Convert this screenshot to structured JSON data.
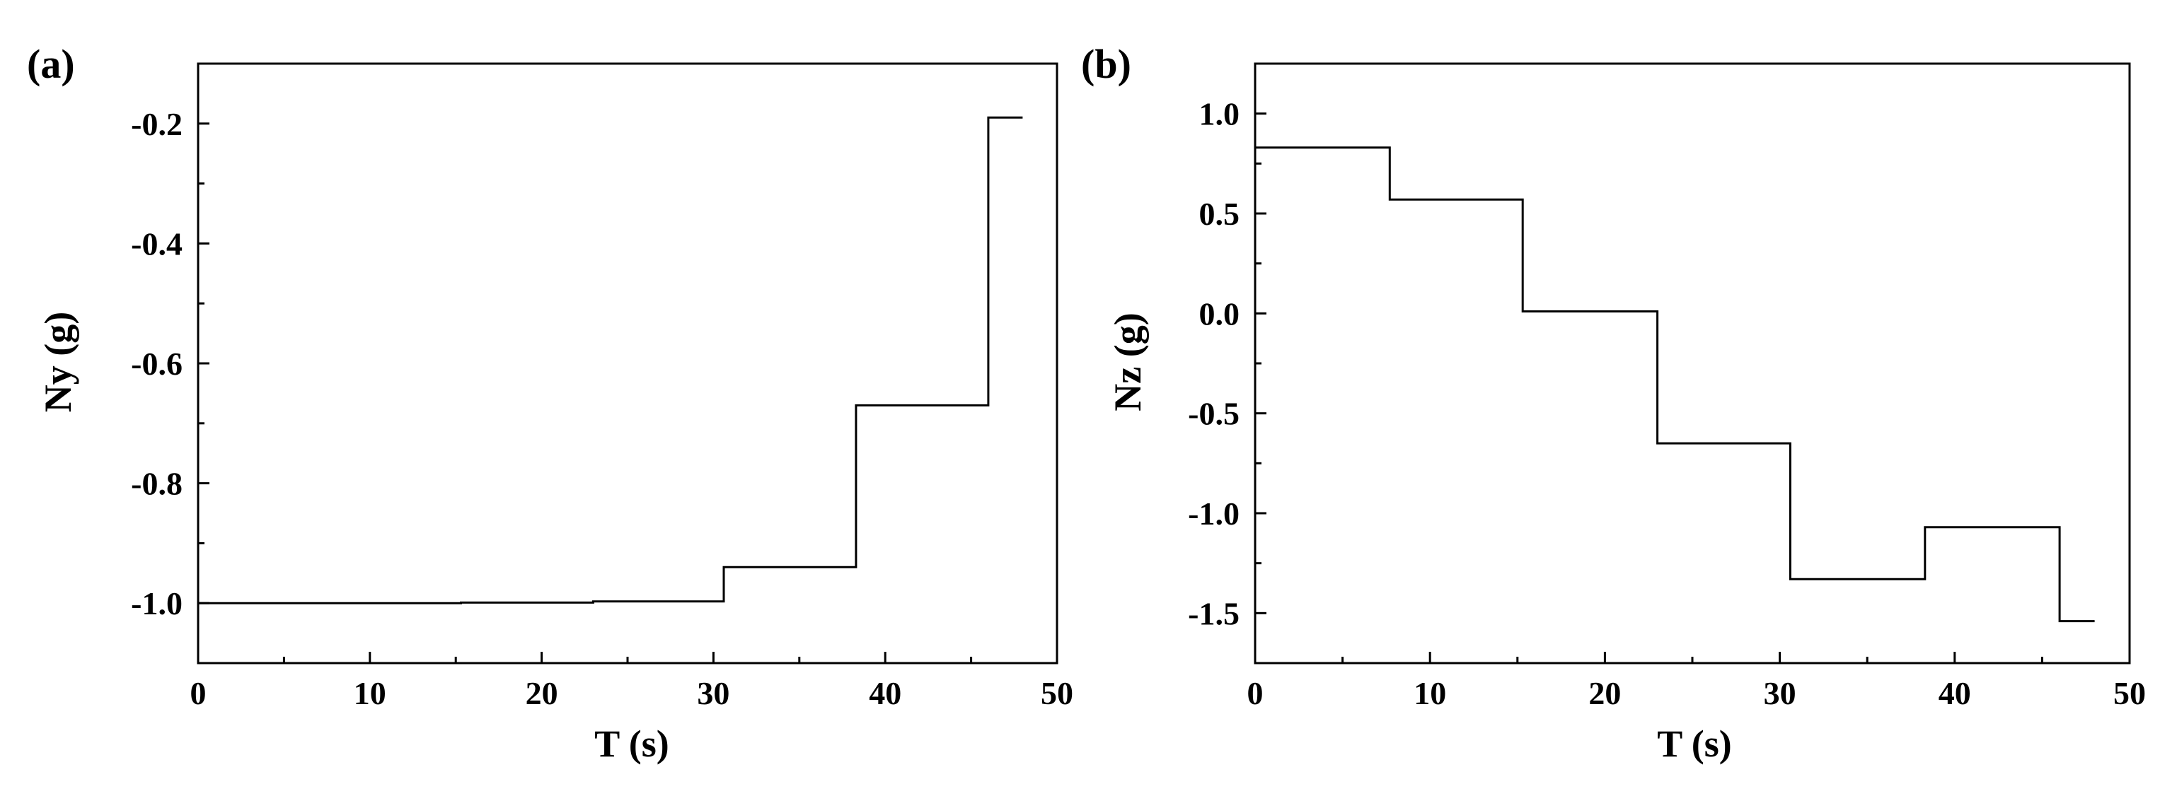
{
  "chart_data": [
    {
      "type": "line",
      "panel_label": "(a)",
      "title": "",
      "xlabel": "T (s)",
      "ylabel": "Ny (g)",
      "xlim": [
        0,
        50
      ],
      "ylim": [
        -1.1,
        -0.1
      ],
      "xticks": [
        0,
        10,
        20,
        30,
        40,
        50
      ],
      "xtick_labels": [
        "0",
        "10",
        "20",
        "30",
        "40",
        "50"
      ],
      "yticks": [
        -1.0,
        -0.8,
        -0.6,
        -0.4,
        -0.2
      ],
      "ytick_labels": [
        "-1.0",
        "-0.8",
        "-0.6",
        "-0.4",
        "-0.2"
      ],
      "grid": false,
      "series": [
        {
          "color": "#000000",
          "points": [
            [
              0,
              -1.0
            ],
            [
              15.3,
              -1.0
            ],
            [
              15.3,
              -0.999
            ],
            [
              23.0,
              -0.999
            ],
            [
              23.0,
              -0.997
            ],
            [
              30.6,
              -0.997
            ],
            [
              30.6,
              -0.94
            ],
            [
              38.3,
              -0.94
            ],
            [
              38.3,
              -0.67
            ],
            [
              46.0,
              -0.67
            ],
            [
              46.0,
              -0.19
            ],
            [
              48.0,
              -0.19
            ]
          ]
        }
      ]
    },
    {
      "type": "line",
      "panel_label": "(b)",
      "title": "",
      "xlabel": "T (s)",
      "ylabel": "Nz (g)",
      "xlim": [
        0,
        50
      ],
      "ylim": [
        -1.75,
        1.25
      ],
      "xticks": [
        0,
        10,
        20,
        30,
        40,
        50
      ],
      "xtick_labels": [
        "0",
        "10",
        "20",
        "30",
        "40",
        "50"
      ],
      "yticks": [
        -1.5,
        -1.0,
        -0.5,
        0.0,
        0.5,
        1.0
      ],
      "ytick_labels": [
        "-1.5",
        "-1.0",
        "-0.5",
        "0.0",
        "0.5",
        "1.0"
      ],
      "grid": false,
      "series": [
        {
          "color": "#000000",
          "points": [
            [
              0,
              0.83
            ],
            [
              7.7,
              0.83
            ],
            [
              7.7,
              0.57
            ],
            [
              15.3,
              0.57
            ],
            [
              15.3,
              0.01
            ],
            [
              23.0,
              0.01
            ],
            [
              23.0,
              -0.65
            ],
            [
              30.6,
              -0.65
            ],
            [
              30.6,
              -1.33
            ],
            [
              38.3,
              -1.33
            ],
            [
              38.3,
              -1.07
            ],
            [
              46.0,
              -1.07
            ],
            [
              46.0,
              -1.54
            ],
            [
              48.0,
              -1.54
            ]
          ]
        }
      ]
    }
  ]
}
